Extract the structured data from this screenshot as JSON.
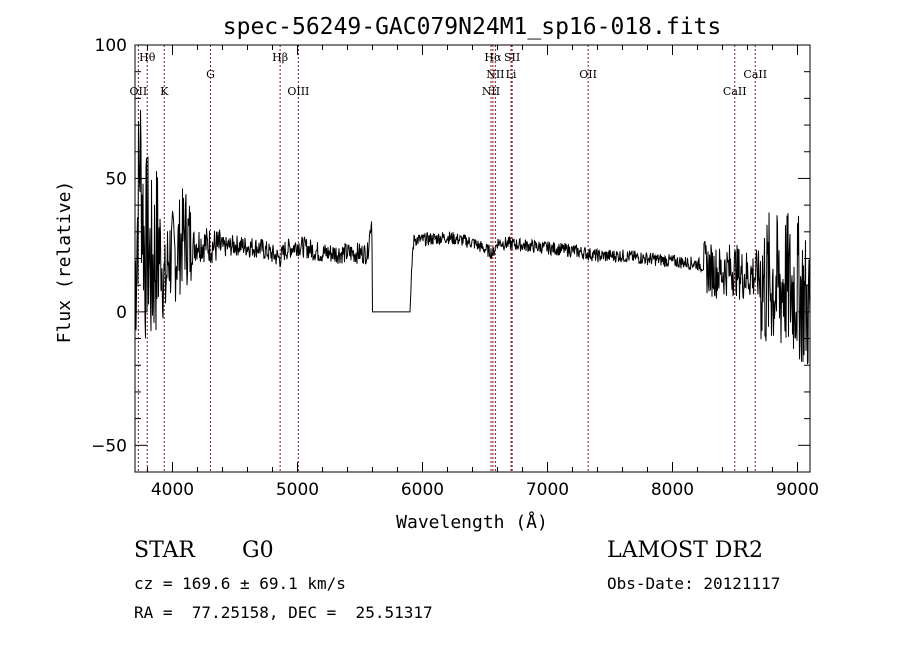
{
  "chart_data": {
    "type": "line",
    "title": "spec-56249-GAC079N24M1_sp16-018.fits",
    "xlabel": "Wavelength (Å)",
    "ylabel": "Flux (relative)",
    "xlim": [
      3700,
      9100
    ],
    "ylim": [
      -60,
      100
    ],
    "xticks": [
      4000,
      5000,
      6000,
      7000,
      8000,
      9000
    ],
    "xtick_labels": [
      "4000",
      "5000",
      "6000",
      "7000",
      "8000",
      "9000"
    ],
    "yticks": [
      -50,
      0,
      50,
      100
    ],
    "ytick_labels": [
      "−50",
      "0",
      "50",
      "100"
    ],
    "line_color": "#000000",
    "marker_color": "#8b1a1a",
    "grid": false,
    "spectrum_anchors": {
      "wavelength": [
        3700,
        3720,
        3740,
        3760,
        3780,
        3800,
        3830,
        3860,
        3900,
        3940,
        3970,
        4000,
        4050,
        4100,
        4150,
        4200,
        4300,
        4400,
        4500,
        4700,
        4861,
        4900,
        5000,
        5200,
        5400,
        5560,
        5580,
        5595,
        5600,
        5620,
        5900,
        5920,
        5935,
        5950,
        6000,
        6200,
        6400,
        6563,
        6600,
        6800,
        7000,
        7200,
        7400,
        7600,
        7800,
        8000,
        8200,
        8300,
        8350,
        8400,
        8450,
        8500,
        8550,
        8600,
        8650,
        8700,
        8750,
        8800,
        8850,
        8900,
        8950,
        9000,
        9050,
        9100
      ],
      "flux": [
        10,
        35,
        60,
        40,
        20,
        28,
        15,
        22,
        25,
        8,
        22,
        20,
        24,
        30,
        24,
        26,
        25,
        24,
        25,
        24,
        20,
        23,
        25,
        22,
        22,
        22,
        30,
        35,
        0,
        0,
        0,
        22,
        28,
        27,
        27,
        28,
        26,
        22,
        26,
        25,
        24,
        23,
        21,
        21,
        20,
        19,
        18,
        16,
        15,
        15,
        16,
        16,
        14,
        14,
        14,
        13,
        10,
        12,
        8,
        12,
        8,
        10,
        5,
        0
      ]
    },
    "line_markers": [
      {
        "label": "OII",
        "wavelength": 3727,
        "row": "low"
      },
      {
        "label": "Hθ",
        "wavelength": 3798,
        "row": "high"
      },
      {
        "label": "K",
        "wavelength": 3934,
        "row": "low"
      },
      {
        "label": "G",
        "wavelength": 4304,
        "row": "mid"
      },
      {
        "label": "Hβ",
        "wavelength": 4861,
        "row": "high"
      },
      {
        "label": "OIII",
        "wavelength": 5007,
        "row": "low"
      },
      {
        "label": "NII",
        "wavelength": 6548,
        "row": "low"
      },
      {
        "label": "Hα",
        "wavelength": 6563,
        "row": "high"
      },
      {
        "label": "NII",
        "wavelength": 6583,
        "row": "mid"
      },
      {
        "label": "Li",
        "wavelength": 6708,
        "row": "mid"
      },
      {
        "label": "SII",
        "wavelength": 6717,
        "row": "high"
      },
      {
        "label": "OII",
        "wavelength": 7325,
        "row": "mid"
      },
      {
        "label": "CaII",
        "wavelength": 8498,
        "row": "low"
      },
      {
        "label": "CaII",
        "wavelength": 8662,
        "row": "mid"
      }
    ]
  },
  "info": {
    "object_type": "STAR",
    "subclass": "G0",
    "survey": "LAMOST DR2",
    "cz": "cz = 169.6 ± 69.1 km/s",
    "obs_date": "Obs-Date: 20121117",
    "coords": "RA =  77.25158, DEC =  25.51317"
  }
}
